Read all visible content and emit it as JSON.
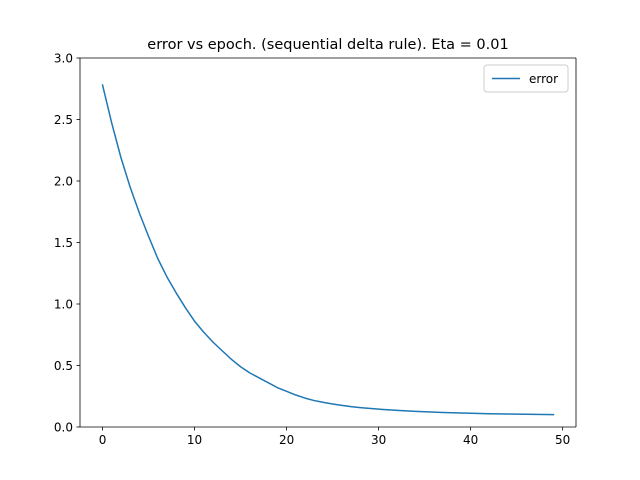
{
  "chart_data": {
    "type": "line",
    "title": "error vs epoch. (sequential delta rule). Eta = 0.01",
    "xlabel": "",
    "ylabel": "",
    "xlim": [
      -2.45,
      51.45
    ],
    "ylim": [
      0.0,
      3.0
    ],
    "xticks": [
      0,
      10,
      20,
      30,
      40,
      50
    ],
    "xtick_labels": [
      "0",
      "10",
      "20",
      "30",
      "40",
      "50"
    ],
    "yticks": [
      0.0,
      0.5,
      1.0,
      1.5,
      2.0,
      2.5,
      3.0
    ],
    "ytick_labels": [
      "0.0",
      "0.5",
      "1.0",
      "1.5",
      "2.0",
      "2.5",
      "3.0"
    ],
    "grid": false,
    "legend_position": "upper right",
    "series": [
      {
        "name": "error",
        "color": "#1f77b4",
        "x": [
          0,
          1,
          2,
          3,
          4,
          5,
          6,
          7,
          8,
          9,
          10,
          11,
          12,
          13,
          14,
          15,
          16,
          17,
          18,
          19,
          20,
          21,
          22,
          23,
          24,
          25,
          26,
          27,
          28,
          29,
          30,
          31,
          32,
          33,
          34,
          35,
          36,
          37,
          38,
          39,
          40,
          41,
          42,
          43,
          44,
          45,
          46,
          47,
          48,
          49
        ],
        "y": [
          2.78,
          2.47,
          2.19,
          1.95,
          1.74,
          1.55,
          1.37,
          1.22,
          1.09,
          0.97,
          0.86,
          0.77,
          0.69,
          0.62,
          0.55,
          0.49,
          0.44,
          0.4,
          0.36,
          0.32,
          0.29,
          0.26,
          0.235,
          0.215,
          0.2,
          0.187,
          0.176,
          0.166,
          0.158,
          0.151,
          0.145,
          0.14,
          0.135,
          0.131,
          0.127,
          0.124,
          0.121,
          0.118,
          0.116,
          0.114,
          0.112,
          0.11,
          0.108,
          0.107,
          0.106,
          0.105,
          0.104,
          0.103,
          0.102,
          0.101
        ]
      }
    ]
  }
}
